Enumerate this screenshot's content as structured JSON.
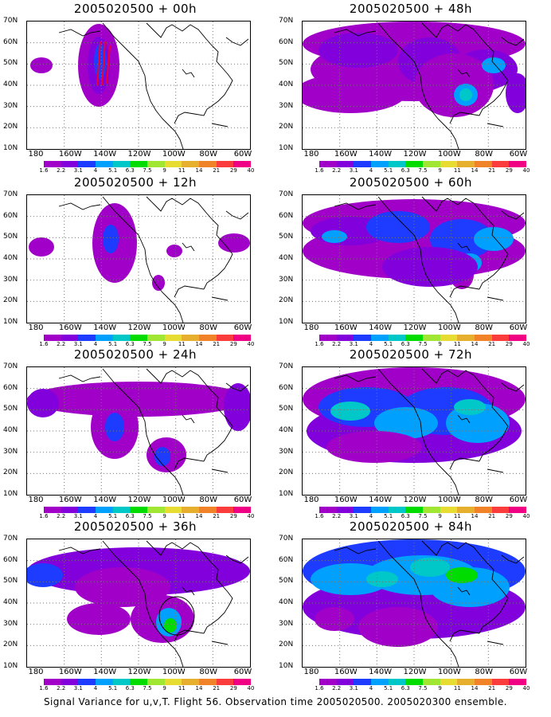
{
  "caption": "Signal Variance for u,v,T. Flight 56. Observation time 2005020500. 2005020300 ensemble.",
  "y_ticks": [
    "70N",
    "60N",
    "50N",
    "40N",
    "30N",
    "20N",
    "10N"
  ],
  "x_ticks": [
    "180",
    "160W",
    "140W",
    "120W",
    "100W",
    "80W",
    "60W"
  ],
  "colorbar": {
    "colors": [
      "#a000c8",
      "#8200dc",
      "#1e3cff",
      "#00a0ff",
      "#00c8c8",
      "#00dc00",
      "#a0e632",
      "#e6dc32",
      "#e6af2d",
      "#f08228",
      "#fa3c3c",
      "#f00082"
    ],
    "labels": [
      "1.6",
      "2.2",
      "3.1",
      "4",
      "5.1",
      "6.3",
      "7.5",
      "9",
      "11",
      "14",
      "21",
      "29",
      "40"
    ]
  },
  "panels": [
    {
      "id": "00h",
      "title": "2005020500 + 00h"
    },
    {
      "id": "48h",
      "title": "2005020500 + 48h"
    },
    {
      "id": "12h",
      "title": "2005020500 + 12h"
    },
    {
      "id": "60h",
      "title": "2005020500 + 60h"
    },
    {
      "id": "24h",
      "title": "2005020500 + 24h"
    },
    {
      "id": "72h",
      "title": "2005020500 + 72h"
    },
    {
      "id": "36h",
      "title": "2005020500 + 36h"
    },
    {
      "id": "84h",
      "title": "2005020500 + 84h"
    }
  ]
}
